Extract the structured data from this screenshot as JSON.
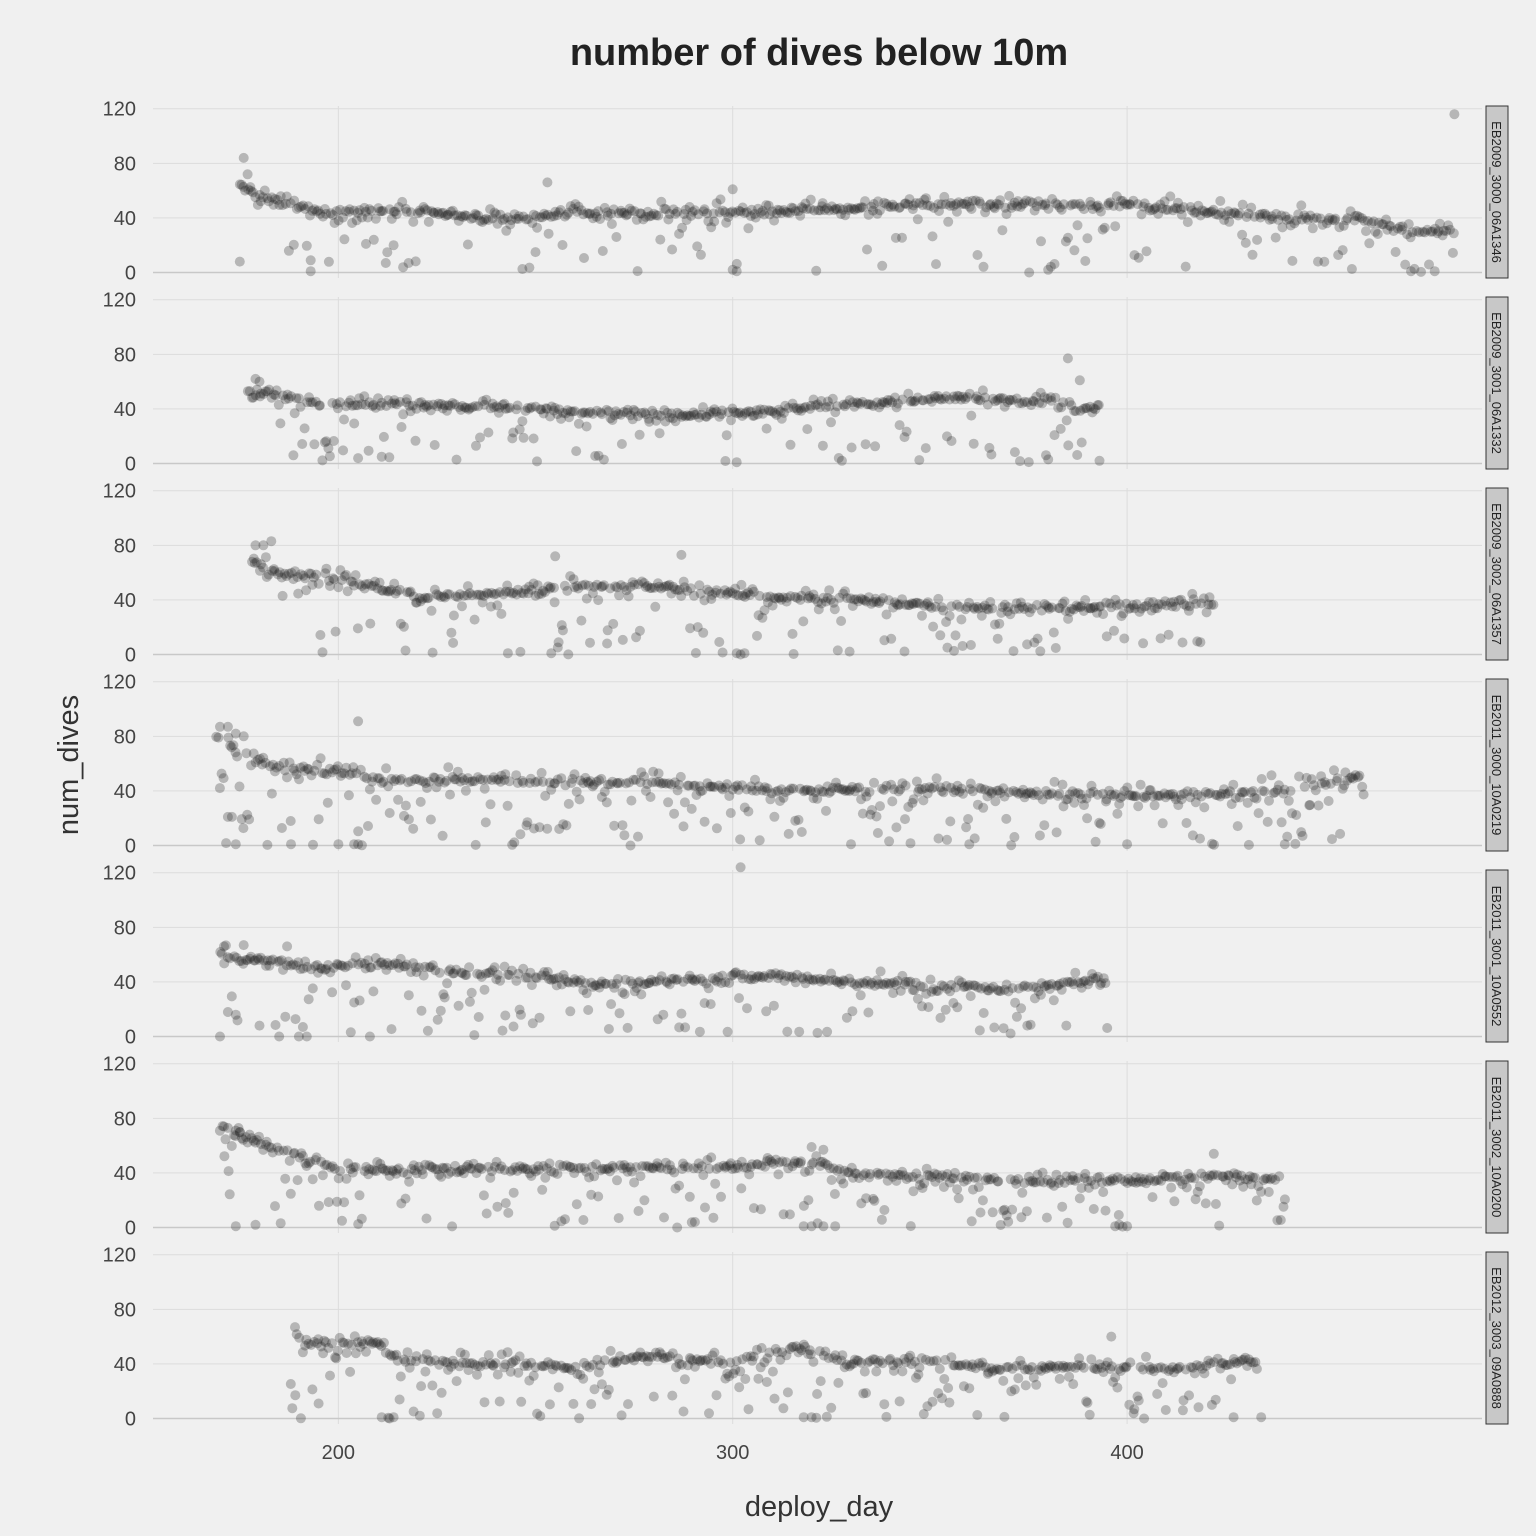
{
  "chart_data": {
    "type": "scatter",
    "title": "number of dives below 10m",
    "xlabel": "deploy_day",
    "ylabel": "num_dives",
    "xlim": [
      153,
      490
    ],
    "ylim": [
      -4,
      122
    ],
    "x_ticks": [
      200,
      300,
      400
    ],
    "y_ticks": [
      0,
      40,
      80,
      120
    ],
    "grid": true,
    "legend": "none",
    "point_color": "#222222",
    "point_opacity": 0.28,
    "panels": [
      {
        "name": "EB2009_3000_06A1346",
        "x_start": 175,
        "x_end": 483,
        "trend": [
          [
            175,
            65
          ],
          [
            180,
            55
          ],
          [
            195,
            44
          ],
          [
            220,
            46
          ],
          [
            240,
            38
          ],
          [
            260,
            44
          ],
          [
            300,
            44
          ],
          [
            320,
            46
          ],
          [
            350,
            50
          ],
          [
            400,
            50
          ],
          [
            420,
            44
          ],
          [
            460,
            38
          ],
          [
            475,
            30
          ]
        ],
        "spread": 14,
        "low_frac": 0.18,
        "points": [
          [
            176,
            84
          ],
          [
            177,
            72
          ],
          [
            175,
            8
          ],
          [
            193,
            9
          ],
          [
            193,
            1
          ],
          [
            207,
            21
          ],
          [
            214,
            20
          ],
          [
            250,
            15
          ],
          [
            253,
            66
          ],
          [
            300,
            61
          ],
          [
            300,
            2
          ],
          [
            301,
            1
          ],
          [
            380,
            2
          ],
          [
            472,
            1
          ],
          [
            478,
            1
          ],
          [
            483,
            116
          ]
        ]
      },
      {
        "name": "EB2009_3001_06A1332",
        "x_start": 177,
        "x_end": 393,
        "trend": [
          [
            177,
            48
          ],
          [
            182,
            52
          ],
          [
            195,
            44
          ],
          [
            215,
            44
          ],
          [
            240,
            42
          ],
          [
            260,
            38
          ],
          [
            290,
            35
          ],
          [
            310,
            38
          ],
          [
            330,
            44
          ],
          [
            360,
            48
          ],
          [
            385,
            44
          ],
          [
            390,
            40
          ]
        ],
        "spread": 12,
        "low_frac": 0.2,
        "points": [
          [
            179,
            62
          ],
          [
            180,
            60
          ],
          [
            385,
            77
          ],
          [
            388,
            61
          ],
          [
            301,
            1
          ],
          [
            393,
            2
          ],
          [
            205,
            4
          ],
          [
            211,
            5
          ],
          [
            380,
            3
          ]
        ]
      },
      {
        "name": "EB2009_3002_06A1357",
        "x_start": 178,
        "x_end": 422,
        "trend": [
          [
            178,
            70
          ],
          [
            185,
            60
          ],
          [
            200,
            56
          ],
          [
            220,
            42
          ],
          [
            240,
            44
          ],
          [
            260,
            50
          ],
          [
            280,
            50
          ],
          [
            300,
            44
          ],
          [
            330,
            40
          ],
          [
            360,
            34
          ],
          [
            390,
            34
          ],
          [
            420,
            38
          ]
        ],
        "spread": 16,
        "low_frac": 0.2,
        "points": [
          [
            179,
            80
          ],
          [
            183,
            83
          ],
          [
            181,
            80
          ],
          [
            255,
            72
          ],
          [
            287,
            73
          ],
          [
            301,
            1
          ],
          [
            303,
            1
          ],
          [
            302,
            0
          ],
          [
            243,
            1
          ],
          [
            254,
            1
          ]
        ]
      },
      {
        "name": "EB2011_3000_10A0219",
        "x_start": 169,
        "x_end": 460,
        "trend": [
          [
            169,
            80
          ],
          [
            175,
            70
          ],
          [
            180,
            60
          ],
          [
            200,
            54
          ],
          [
            210,
            48
          ],
          [
            240,
            48
          ],
          [
            280,
            46
          ],
          [
            300,
            42
          ],
          [
            320,
            40
          ],
          [
            350,
            42
          ],
          [
            380,
            38
          ],
          [
            410,
            36
          ],
          [
            440,
            40
          ],
          [
            458,
            50
          ]
        ],
        "spread": 18,
        "low_frac": 0.25,
        "points": [
          [
            170,
            87
          ],
          [
            172,
            87
          ],
          [
            174,
            82
          ],
          [
            176,
            80
          ],
          [
            205,
            91
          ],
          [
            172,
            21
          ],
          [
            173,
            21
          ],
          [
            174,
            1
          ],
          [
            188,
            1
          ],
          [
            200,
            1
          ],
          [
            204,
            1
          ],
          [
            205,
            1
          ],
          [
            330,
            1
          ],
          [
            360,
            1
          ],
          [
            400,
            1
          ],
          [
            440,
            1
          ]
        ]
      },
      {
        "name": "EB2011_3001_10A0552",
        "x_start": 170,
        "x_end": 395,
        "trend": [
          [
            170,
            60
          ],
          [
            180,
            56
          ],
          [
            195,
            50
          ],
          [
            210,
            54
          ],
          [
            230,
            48
          ],
          [
            250,
            44
          ],
          [
            265,
            38
          ],
          [
            290,
            42
          ],
          [
            310,
            44
          ],
          [
            330,
            40
          ],
          [
            350,
            38
          ],
          [
            370,
            34
          ],
          [
            385,
            40
          ],
          [
            393,
            42
          ]
        ],
        "spread": 12,
        "low_frac": 0.2,
        "points": [
          [
            171,
            66
          ],
          [
            176,
            67
          ],
          [
            187,
            66
          ],
          [
            302,
            124
          ],
          [
            170,
            0
          ],
          [
            185,
            0
          ],
          [
            190,
            0
          ],
          [
            192,
            0
          ],
          [
            208,
            0
          ],
          [
            191,
            7
          ],
          [
            172,
            18
          ],
          [
            174,
            16
          ],
          [
            180,
            8
          ]
        ]
      },
      {
        "name": "EB2011_3002_10A0200",
        "x_start": 170,
        "x_end": 440,
        "trend": [
          [
            170,
            70
          ],
          [
            178,
            65
          ],
          [
            190,
            52
          ],
          [
            200,
            42
          ],
          [
            230,
            44
          ],
          [
            260,
            44
          ],
          [
            290,
            44
          ],
          [
            310,
            48
          ],
          [
            318,
            48
          ],
          [
            330,
            40
          ],
          [
            360,
            36
          ],
          [
            380,
            34
          ],
          [
            395,
            36
          ],
          [
            400,
            34
          ],
          [
            420,
            38
          ],
          [
            438,
            36
          ]
        ],
        "spread": 14,
        "low_frac": 0.22,
        "points": [
          [
            171,
            74
          ],
          [
            172,
            73
          ],
          [
            174,
            71
          ],
          [
            175,
            70
          ],
          [
            174,
            1
          ],
          [
            179,
            2
          ],
          [
            318,
            1
          ],
          [
            320,
            1
          ],
          [
            323,
            1
          ],
          [
            326,
            1
          ],
          [
            397,
            1
          ],
          [
            398,
            2
          ],
          [
            400,
            1
          ],
          [
            422,
            54
          ],
          [
            320,
            59
          ],
          [
            323,
            57
          ]
        ]
      },
      {
        "name": "EB2012_3003_09A0888",
        "x_start": 188,
        "x_end": 433,
        "trend": [
          [
            188,
            58
          ],
          [
            195,
            54
          ],
          [
            210,
            56
          ],
          [
            215,
            42
          ],
          [
            240,
            40
          ],
          [
            260,
            38
          ],
          [
            280,
            46
          ],
          [
            300,
            40
          ],
          [
            315,
            52
          ],
          [
            330,
            42
          ],
          [
            350,
            42
          ],
          [
            370,
            36
          ],
          [
            390,
            38
          ],
          [
            410,
            36
          ],
          [
            430,
            42
          ]
        ],
        "spread": 18,
        "low_frac": 0.28,
        "points": [
          [
            189,
            67
          ],
          [
            195,
            11
          ],
          [
            211,
            1
          ],
          [
            213,
            0
          ],
          [
            214,
            1
          ],
          [
            318,
            1
          ],
          [
            320,
            1
          ],
          [
            396,
            60
          ],
          [
            427,
            1
          ],
          [
            434,
            1
          ]
        ]
      }
    ]
  }
}
